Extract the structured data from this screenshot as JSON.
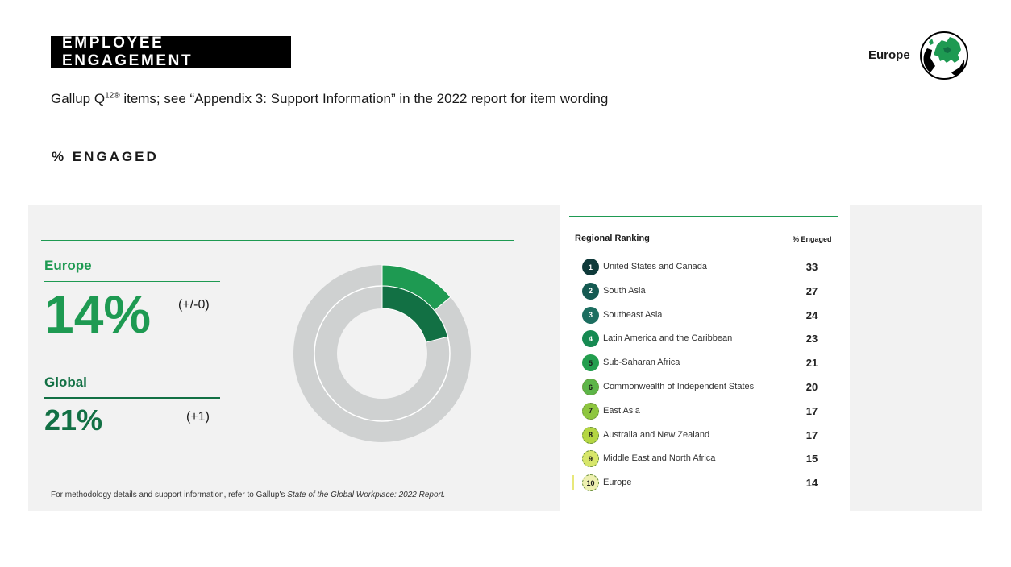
{
  "header": {
    "title": "EMPLOYEE ENGAGEMENT",
    "subtitle_pre": "Gallup Q",
    "subtitle_sup": "12®",
    "subtitle_post": " items; see “Appendix 3: Support Information” in the 2022 report for item wording",
    "section": "% ENGAGED",
    "region": "Europe",
    "globe_icon": "europe-globe-icon"
  },
  "stats": {
    "europe_label": "Europe",
    "europe_value": "14%",
    "europe_change": "(+/-0)",
    "global_label": "Global",
    "global_value": "21%",
    "global_change": "(+1)"
  },
  "chart_data": {
    "type": "pie",
    "variant": "nested-donut",
    "series": [
      {
        "name": "Europe",
        "value": 14,
        "ring": "outer",
        "color": "#1e9a52"
      },
      {
        "name": "Global",
        "value": 21,
        "ring": "inner",
        "color": "#127044"
      }
    ],
    "max": 100,
    "track_color": "#cfd1d1"
  },
  "ranking": {
    "title": "Regional Ranking",
    "column": "% Engaged",
    "rows": [
      {
        "rank": "1",
        "name": "United States and Canada",
        "value": "33",
        "color": "#0f3a3a",
        "text": "#ffffff",
        "dashed": false
      },
      {
        "rank": "2",
        "name": "South Asia",
        "value": "27",
        "color": "#155a52",
        "text": "#ffffff",
        "dashed": false
      },
      {
        "rank": "3",
        "name": "Southeast Asia",
        "value": "24",
        "color": "#1c6e60",
        "text": "#ffffff",
        "dashed": false
      },
      {
        "rank": "4",
        "name": "Latin America and the Caribbean",
        "value": "23",
        "color": "#168a52",
        "text": "#ffffff",
        "dashed": false
      },
      {
        "rank": "5",
        "name": "Sub-Saharan Africa",
        "value": "21",
        "color": "#239e4e",
        "text": "#1a1a1a",
        "dashed": false
      },
      {
        "rank": "6",
        "name": "Commonwealth of Independent States",
        "value": "20",
        "color": "#5db548",
        "text": "#1a1a1a",
        "dashed": true
      },
      {
        "rank": "7",
        "name": "East Asia",
        "value": "17",
        "color": "#8ec63f",
        "text": "#1a1a1a",
        "dashed": true
      },
      {
        "rank": "8",
        "name": "Australia and New Zealand",
        "value": "17",
        "color": "#b4d643",
        "text": "#1a1a1a",
        "dashed": true
      },
      {
        "rank": "9",
        "name": "Middle East and North Africa",
        "value": "15",
        "color": "#d7e66a",
        "text": "#1a1a1a",
        "dashed": true
      },
      {
        "rank": "10",
        "name": "Europe",
        "value": "14",
        "color": "#eef0b0",
        "text": "#1a1a1a",
        "dashed": true
      }
    ]
  },
  "footnote": {
    "text": "For methodology details and support information, refer to Gallup's ",
    "italic": "State of the Global Workplace: 2022 Report."
  }
}
